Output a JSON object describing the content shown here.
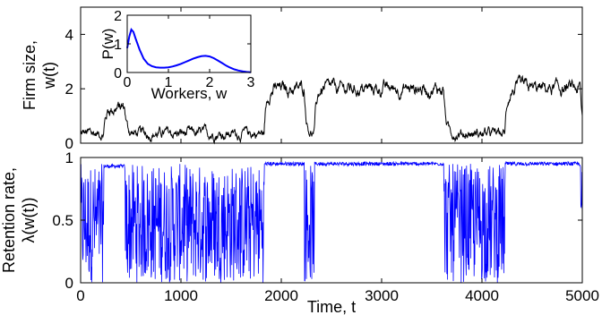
{
  "chart_data": [
    {
      "id": "firm-size",
      "type": "line",
      "ylabel_lines": [
        "Firm size,",
        "w(t)"
      ],
      "xlim": [
        0,
        5000
      ],
      "ylim": [
        0,
        5
      ],
      "xticks": [
        0,
        1000,
        2000,
        3000,
        4000,
        5000
      ],
      "yticks": [
        0,
        2,
        4
      ],
      "grid": false,
      "series": [
        {
          "color": "#000000",
          "description": "stochastic trajectory of w(t); low state near 0.3 and high state near 2.0",
          "segments": [
            {
              "t": [
                0,
                230
              ],
              "state": "low",
              "mean": 0.35
            },
            {
              "t": [
                230,
                440
              ],
              "state": "bump",
              "mean": 1.3
            },
            {
              "t": [
                440,
                1830
              ],
              "state": "low",
              "mean": 0.35
            },
            {
              "t": [
                1830,
                2230
              ],
              "state": "high",
              "mean": 2.0
            },
            {
              "t": [
                2230,
                2330
              ],
              "state": "low",
              "mean": 0.35
            },
            {
              "t": [
                2330,
                3620
              ],
              "state": "high",
              "mean": 2.0
            },
            {
              "t": [
                3620,
                4230
              ],
              "state": "low",
              "mean": 0.35
            },
            {
              "t": [
                4230,
                4980
              ],
              "state": "high",
              "mean": 2.0
            },
            {
              "t": [
                4980,
                5000
              ],
              "state": "low",
              "mean": 0.2
            }
          ]
        }
      ]
    },
    {
      "id": "inset-distribution",
      "type": "line",
      "xlabel": "Workers, w",
      "ylabel": "P(w)",
      "xlim": [
        0,
        3
      ],
      "ylim": [
        0,
        2
      ],
      "xticks": [
        0,
        1,
        2,
        3
      ],
      "yticks": [
        0,
        1,
        2
      ],
      "series": [
        {
          "color": "#0000ff",
          "x": [
            0,
            0.05,
            0.1,
            0.15,
            0.2,
            0.3,
            0.4,
            0.5,
            0.6,
            0.7,
            0.8,
            0.9,
            1.0,
            1.1,
            1.2,
            1.3,
            1.4,
            1.5,
            1.6,
            1.7,
            1.8,
            1.9,
            2.0,
            2.1,
            2.2,
            2.3,
            2.4,
            2.5,
            2.6,
            2.7,
            2.8,
            2.9,
            3.0
          ],
          "y": [
            0.85,
            1.25,
            1.5,
            1.42,
            1.2,
            0.8,
            0.48,
            0.3,
            0.22,
            0.18,
            0.17,
            0.17,
            0.18,
            0.21,
            0.25,
            0.3,
            0.36,
            0.42,
            0.48,
            0.53,
            0.57,
            0.58,
            0.56,
            0.5,
            0.42,
            0.33,
            0.24,
            0.17,
            0.11,
            0.07,
            0.04,
            0.02,
            0.01
          ]
        }
      ]
    },
    {
      "id": "retention-rate",
      "type": "line",
      "xlabel": "Time, t",
      "ylabel_lines": [
        "Retention rate,",
        "λ(w(t))"
      ],
      "xlim": [
        0,
        5000
      ],
      "ylim": [
        0,
        1
      ],
      "xticks": [
        0,
        1000,
        2000,
        3000,
        4000,
        5000
      ],
      "yticks": [
        0,
        0.5,
        1
      ],
      "grid": false,
      "series": [
        {
          "color": "#0000ff",
          "description": "λ(w(t)); near 0.95 in high state, fluctuating between 0 and 0.95 in low state",
          "segments": [
            {
              "t": [
                0,
                230
              ],
              "state": "low-fluctuating"
            },
            {
              "t": [
                230,
                440
              ],
              "state": "high",
              "mean": 0.93
            },
            {
              "t": [
                440,
                1830
              ],
              "state": "low-fluctuating"
            },
            {
              "t": [
                1830,
                2230
              ],
              "state": "high",
              "mean": 0.95
            },
            {
              "t": [
                2230,
                2330
              ],
              "state": "low-fluctuating"
            },
            {
              "t": [
                2330,
                3620
              ],
              "state": "high",
              "mean": 0.95
            },
            {
              "t": [
                3620,
                4230
              ],
              "state": "low-fluctuating"
            },
            {
              "t": [
                4230,
                4980
              ],
              "state": "high",
              "mean": 0.95
            },
            {
              "t": [
                4980,
                5000
              ],
              "state": "low-fluctuating"
            }
          ]
        }
      ]
    }
  ]
}
